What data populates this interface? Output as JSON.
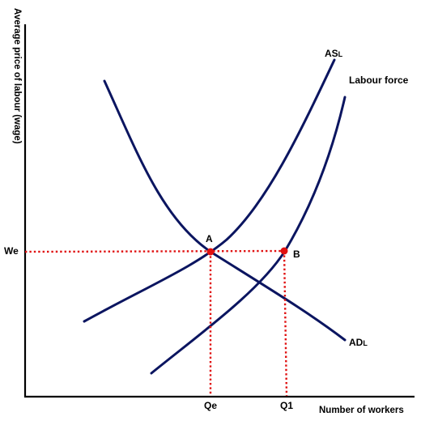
{
  "axes": {
    "y_label": "Average price of labour (wage)",
    "x_label": "Number of workers"
  },
  "curves": {
    "as": {
      "main": "AS",
      "sub": "L"
    },
    "labour_force": {
      "label": "Labour force"
    },
    "ad": {
      "main": "AD",
      "sub": "L"
    }
  },
  "points": {
    "a": {
      "label": "A"
    },
    "b": {
      "label": "B"
    }
  },
  "ticks": {
    "we": "We",
    "qe": "Qe",
    "q1": "Q1"
  },
  "colors": {
    "curve": "#0b1560",
    "guide": "#e01010",
    "axis": "#000000"
  }
}
